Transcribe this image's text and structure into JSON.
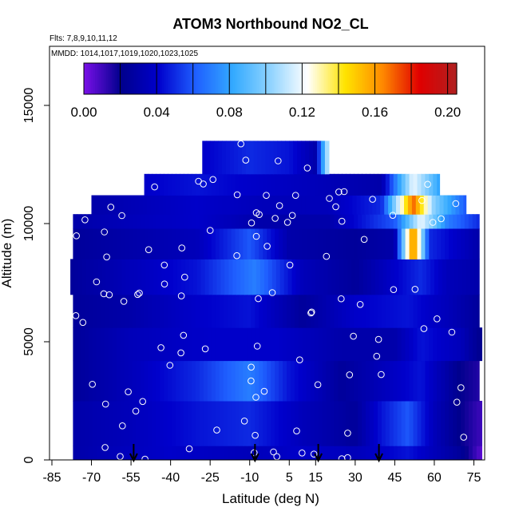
{
  "chart_data": {
    "type": "heatmap",
    "title": "ATOM3 Northbound NO2_CL",
    "subtitle_flights": "Flts: 7,8,9,10,11,12",
    "subtitle_dates": "MMDD: 1014,1017,1019,1020,1023,1025",
    "xlabel": "Latitude (deg N)",
    "ylabel": "Altitude (m)",
    "xlim": [
      -85,
      80
    ],
    "ylim": [
      0,
      17500
    ],
    "x_ticks": [
      -85,
      -70,
      -55,
      -40,
      -25,
      -10,
      5,
      15,
      30,
      45,
      60,
      75
    ],
    "y_ticks": [
      0,
      5000,
      10000,
      15000
    ],
    "colorbar": {
      "range": [
        0.0,
        0.205
      ],
      "ticks": [
        "0.00",
        "0.04",
        "0.08",
        "0.12",
        "0.16",
        "0.20"
      ],
      "tick_values": [
        0.0,
        0.04,
        0.08,
        0.12,
        0.16,
        0.2
      ],
      "divisions": [
        0.0,
        0.02,
        0.04,
        0.06,
        0.08,
        0.1,
        0.12,
        0.14,
        0.16,
        0.18,
        0.2
      ],
      "colors": [
        "#7a10e8",
        "#00008c",
        "#0000cc",
        "#1f5fff",
        "#33aaff",
        "#8fd3ff",
        "#ffffff",
        "#ffe400",
        "#ff8a00",
        "#e00000",
        "#b02020"
      ]
    },
    "arrows_latitude": [
      -54,
      -8,
      16,
      39
    ],
    "field": {
      "description_rows": [
        {
          "alt_min": 0,
          "alt_max": 600,
          "lat_min": -77,
          "lat_max": 78,
          "values": [
            [
              -77,
              0.03
            ],
            [
              -60,
              0.035
            ],
            [
              -40,
              0.04
            ],
            [
              -10,
              0.035
            ],
            [
              10,
              0.04
            ],
            [
              30,
              0.035
            ],
            [
              50,
              0.045
            ],
            [
              70,
              0.025
            ],
            [
              78,
              0.005
            ]
          ]
        },
        {
          "alt_min": 600,
          "alt_max": 2500,
          "lat_min": -77,
          "lat_max": 78,
          "values": [
            [
              -77,
              0.03
            ],
            [
              -55,
              0.035
            ],
            [
              -30,
              0.045
            ],
            [
              -10,
              0.05
            ],
            [
              10,
              0.035
            ],
            [
              30,
              0.025
            ],
            [
              40,
              0.045
            ],
            [
              50,
              0.06
            ],
            [
              60,
              0.035
            ],
            [
              70,
              0.02
            ],
            [
              78,
              0.01
            ]
          ]
        },
        {
          "alt_min": 2500,
          "alt_max": 4200,
          "lat_min": -77,
          "lat_max": 77,
          "values": [
            [
              -77,
              0.025
            ],
            [
              -55,
              0.035
            ],
            [
              -30,
              0.05
            ],
            [
              -10,
              0.07
            ],
            [
              5,
              0.045
            ],
            [
              25,
              0.025
            ],
            [
              40,
              0.035
            ],
            [
              55,
              0.045
            ],
            [
              70,
              0.02
            ],
            [
              77,
              0.015
            ]
          ]
        },
        {
          "alt_min": 4200,
          "alt_max": 5600,
          "lat_min": -77,
          "lat_max": 78,
          "values": [
            [
              -77,
              0.025
            ],
            [
              -55,
              0.035
            ],
            [
              -25,
              0.04
            ],
            [
              0,
              0.04
            ],
            [
              25,
              0.03
            ],
            [
              45,
              0.03
            ],
            [
              55,
              0.045
            ],
            [
              70,
              0.035
            ],
            [
              78,
              0.02
            ]
          ]
        },
        {
          "alt_min": 5600,
          "alt_max": 7000,
          "lat_min": -77,
          "lat_max": 77,
          "values": [
            [
              -77,
              0.025
            ],
            [
              -55,
              0.03
            ],
            [
              -30,
              0.04
            ],
            [
              -10,
              0.045
            ],
            [
              10,
              0.025
            ],
            [
              30,
              0.04
            ],
            [
              50,
              0.045
            ],
            [
              65,
              0.035
            ],
            [
              77,
              0.025
            ]
          ]
        },
        {
          "alt_min": 7000,
          "alt_max": 8500,
          "lat_min": -78,
          "lat_max": 77,
          "values": [
            [
              -78,
              0.025
            ],
            [
              -55,
              0.035
            ],
            [
              -30,
              0.045
            ],
            [
              -8,
              0.07
            ],
            [
              10,
              0.035
            ],
            [
              30,
              0.025
            ],
            [
              45,
              0.04
            ],
            [
              55,
              0.05
            ],
            [
              65,
              0.035
            ],
            [
              77,
              0.03
            ]
          ]
        },
        {
          "alt_min": 8500,
          "alt_max": 9800,
          "lat_min": -77,
          "lat_max": 77,
          "values": [
            [
              -77,
              0.025
            ],
            [
              -55,
              0.03
            ],
            [
              -30,
              0.035
            ],
            [
              -10,
              0.06
            ],
            [
              5,
              0.03
            ],
            [
              30,
              0.025
            ],
            [
              45,
              0.03
            ],
            [
              52,
              0.17
            ],
            [
              58,
              0.05
            ],
            [
              77,
              0.03
            ]
          ]
        },
        {
          "alt_min": 9800,
          "alt_max": 10400,
          "lat_min": -77,
          "lat_max": 77,
          "values": [
            [
              -77,
              0.03
            ],
            [
              -55,
              0.035
            ],
            [
              -30,
              0.04
            ],
            [
              -5,
              0.03
            ],
            [
              20,
              0.03
            ],
            [
              45,
              0.06
            ],
            [
              55,
              0.12
            ],
            [
              65,
              0.07
            ],
            [
              77,
              0.05
            ]
          ]
        },
        {
          "alt_min": 10400,
          "alt_max": 11200,
          "lat_min": -70,
          "lat_max": 72,
          "values": [
            [
              -70,
              0.03
            ],
            [
              -50,
              0.035
            ],
            [
              -30,
              0.04
            ],
            [
              -5,
              0.035
            ],
            [
              20,
              0.035
            ],
            [
              40,
              0.05
            ],
            [
              52,
              0.17
            ],
            [
              60,
              0.1
            ],
            [
              72,
              0.06
            ]
          ]
        },
        {
          "alt_min": 11200,
          "alt_max": 12100,
          "lat_min": -50,
          "lat_max": 62,
          "values": [
            [
              -50,
              0.04
            ],
            [
              -30,
              0.045
            ],
            [
              -10,
              0.04
            ],
            [
              15,
              0.035
            ],
            [
              40,
              0.03
            ],
            [
              52,
              0.12
            ],
            [
              62,
              0.08
            ]
          ]
        },
        {
          "alt_min": 12100,
          "alt_max": 13500,
          "lat_min": -28,
          "lat_max": 20,
          "values": [
            [
              -28,
              0.04
            ],
            [
              -10,
              0.05
            ],
            [
              5,
              0.045
            ],
            [
              15,
              0.03
            ],
            [
              20,
              0.12
            ]
          ]
        }
      ]
    }
  }
}
